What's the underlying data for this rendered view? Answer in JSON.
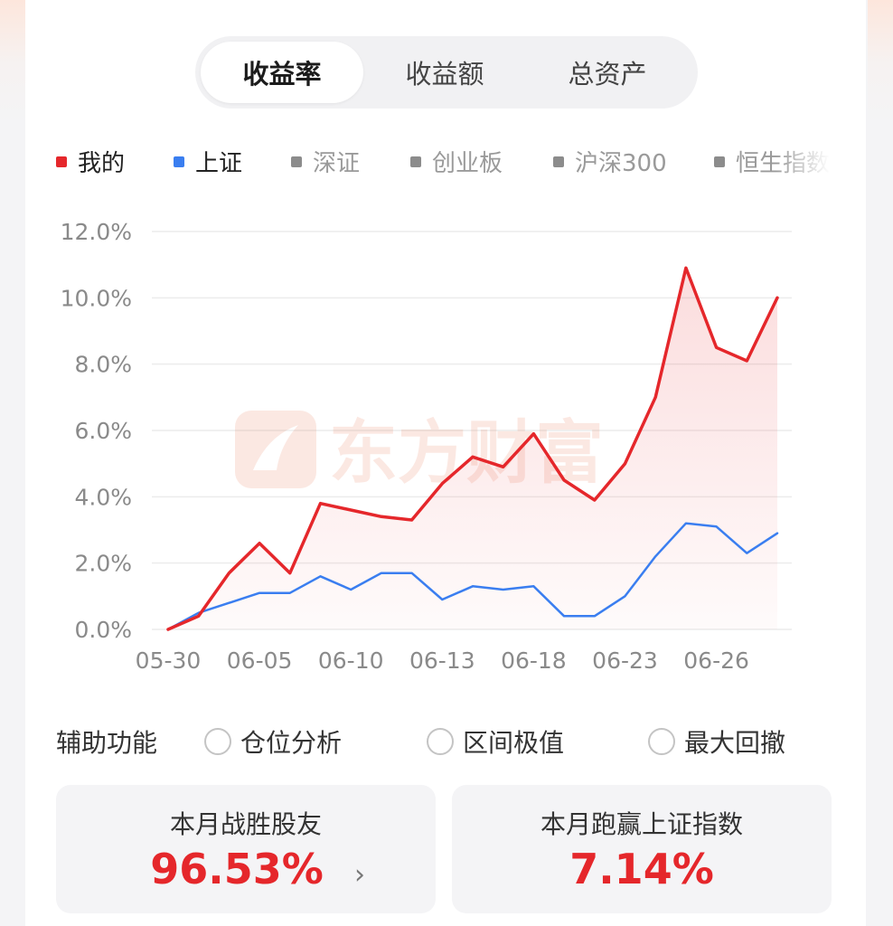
{
  "tabs": [
    "收益率",
    "收益额",
    "总资产"
  ],
  "active_tab": 0,
  "legend": [
    {
      "label": "我的",
      "color": "#e5272b",
      "active": true
    },
    {
      "label": "上证",
      "color": "#3a7ef0",
      "active": true
    },
    {
      "label": "深证",
      "color": "#8c8c8c",
      "active": false
    },
    {
      "label": "创业板",
      "color": "#8c8c8c",
      "active": false
    },
    {
      "label": "沪深300",
      "color": "#8c8c8c",
      "active": false
    },
    {
      "label": "恒生指数",
      "color": "#8c8c8c",
      "active": false
    }
  ],
  "watermark": "东方财富",
  "chart_data": {
    "type": "line",
    "title": "",
    "xlabel": "",
    "ylabel": "",
    "ylim": [
      0,
      12
    ],
    "y_ticks": [
      "0.0%",
      "2.0%",
      "4.0%",
      "6.0%",
      "8.0%",
      "10.0%",
      "12.0%"
    ],
    "x_tick_labels": [
      "05-30",
      "06-05",
      "06-10",
      "06-13",
      "06-18",
      "06-23",
      "06-26"
    ],
    "x_tick_index": [
      0,
      3,
      6,
      9,
      12,
      15,
      18
    ],
    "grid": true,
    "series": [
      {
        "name": "我的",
        "color": "#e5272b",
        "fill": true,
        "values": [
          0.0,
          0.4,
          1.7,
          2.6,
          1.7,
          3.8,
          3.6,
          3.4,
          3.3,
          4.4,
          5.2,
          4.9,
          5.9,
          4.5,
          3.9,
          5.0,
          7.0,
          10.9,
          8.5,
          8.1,
          10.0
        ]
      },
      {
        "name": "上证",
        "color": "#3a7ef0",
        "fill": false,
        "values": [
          0.0,
          0.5,
          0.8,
          1.1,
          1.1,
          1.6,
          1.2,
          1.7,
          1.7,
          0.9,
          1.3,
          1.2,
          1.3,
          0.4,
          0.4,
          1.0,
          2.2,
          3.2,
          3.1,
          2.3,
          2.9
        ]
      }
    ]
  },
  "aux": {
    "title": "辅助功能",
    "options": [
      "仓位分析",
      "区间极值",
      "最大回撤"
    ]
  },
  "stats": [
    {
      "label": "本月战胜股友",
      "value": "96.53%",
      "has_arrow": true,
      "arrow": "›"
    },
    {
      "label": "本月跑赢上证指数",
      "value": "7.14%",
      "has_arrow": false
    }
  ]
}
